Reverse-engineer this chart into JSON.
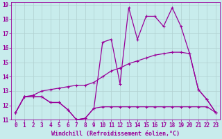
{
  "xlabel": "Windchill (Refroidissement éolien,°C)",
  "background_color": "#c8ecec",
  "grid_color": "#b0d0d0",
  "line_color": "#990099",
  "xlim": [
    -0.5,
    23.5
  ],
  "ylim": [
    11,
    19.2
  ],
  "xticks": [
    0,
    1,
    2,
    3,
    4,
    5,
    6,
    7,
    8,
    9,
    10,
    11,
    12,
    13,
    14,
    15,
    16,
    17,
    18,
    19,
    20,
    21,
    22,
    23
  ],
  "yticks": [
    11,
    12,
    13,
    14,
    15,
    16,
    17,
    18,
    19
  ],
  "line1_x": [
    0,
    1,
    2,
    3,
    4,
    5,
    6,
    7,
    8,
    9,
    10,
    11,
    12,
    13,
    14,
    15,
    16,
    17,
    18,
    19,
    20,
    21,
    22,
    23
  ],
  "line1_y": [
    11.5,
    12.6,
    12.6,
    12.6,
    12.2,
    12.2,
    11.7,
    11.0,
    11.1,
    11.8,
    11.9,
    11.9,
    11.9,
    11.9,
    11.9,
    11.9,
    11.9,
    11.9,
    11.9,
    11.9,
    11.9,
    11.9,
    11.9,
    11.5
  ],
  "line2_x": [
    0,
    1,
    2,
    3,
    4,
    5,
    6,
    7,
    8,
    9,
    10,
    11,
    12,
    13,
    14,
    15,
    16,
    17,
    18,
    19,
    20,
    21,
    22,
    23
  ],
  "line2_y": [
    11.5,
    12.6,
    12.7,
    13.0,
    13.1,
    13.2,
    13.3,
    13.4,
    13.4,
    13.6,
    14.0,
    14.4,
    14.6,
    14.9,
    15.1,
    15.3,
    15.5,
    15.6,
    15.7,
    15.7,
    15.6,
    13.1,
    12.4,
    11.5
  ],
  "line3_x": [
    0,
    1,
    2,
    3,
    4,
    5,
    6,
    7,
    8,
    9,
    10,
    11,
    12,
    13,
    14,
    15,
    16,
    17,
    18,
    19,
    20,
    21,
    22,
    23
  ],
  "line3_y": [
    11.5,
    12.6,
    12.6,
    12.6,
    12.2,
    12.2,
    11.7,
    11.0,
    11.1,
    11.8,
    16.4,
    16.6,
    13.5,
    18.8,
    16.6,
    18.2,
    18.2,
    17.5,
    18.8,
    17.5,
    15.6,
    13.1,
    12.4,
    11.5
  ],
  "marker": "+",
  "marker_size": 3,
  "line_width": 0.9,
  "font_size": 6,
  "tick_font_size": 5.5
}
